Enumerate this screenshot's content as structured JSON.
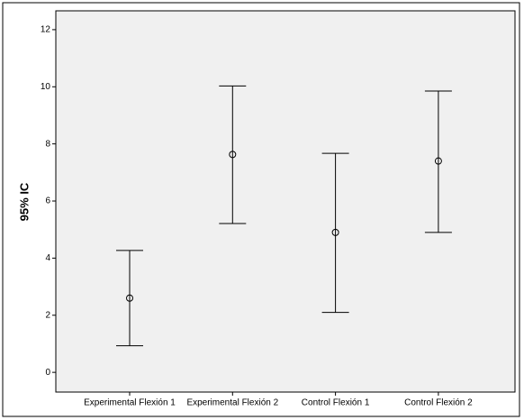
{
  "chart_data": {
    "type": "errorbar",
    "y_label": "95% IC",
    "categories": [
      "Experimental Flexión 1",
      "Experimental Flexión 2",
      "Control Flexión 1",
      "Control Flexión 2"
    ],
    "values": [
      2.6,
      7.63,
      4.9,
      7.4
    ],
    "lower": [
      0.93,
      5.21,
      2.1,
      4.9
    ],
    "upper": [
      4.27,
      10.03,
      7.67,
      9.85
    ],
    "color": "#000000",
    "ylim": [
      -0.69,
      12.66
    ],
    "yticks": [
      0,
      2,
      4,
      6,
      8,
      10,
      12
    ]
  }
}
